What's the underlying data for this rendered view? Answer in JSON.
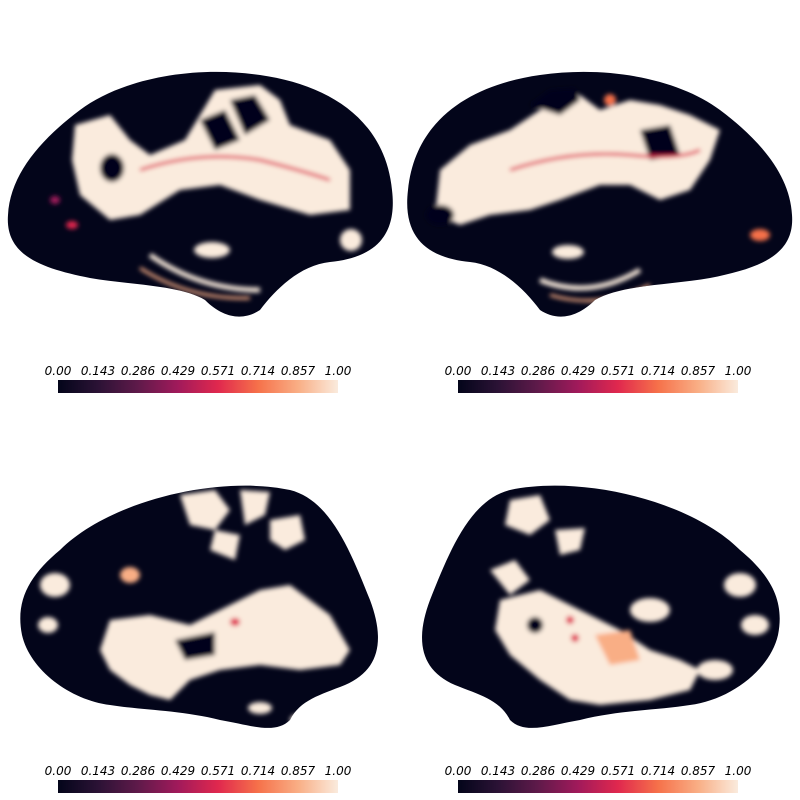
{
  "colormap": {
    "name": "rocket",
    "stops": [
      "#03051a",
      "#2b1235",
      "#5f1a4a",
      "#a11a5b",
      "#e0284e",
      "#f6714a",
      "#f9ae85",
      "#faebdd"
    ]
  },
  "colorbar_ticks": [
    "0.00",
    "0.143",
    "0.286",
    "0.429",
    "0.571",
    "0.714",
    "0.857",
    "1.00"
  ],
  "views": [
    {
      "hemisphere": "left",
      "view": "lateral"
    },
    {
      "hemisphere": "right",
      "view": "lateral"
    },
    {
      "hemisphere": "left",
      "view": "medial"
    },
    {
      "hemisphere": "right",
      "view": "medial"
    }
  ]
}
